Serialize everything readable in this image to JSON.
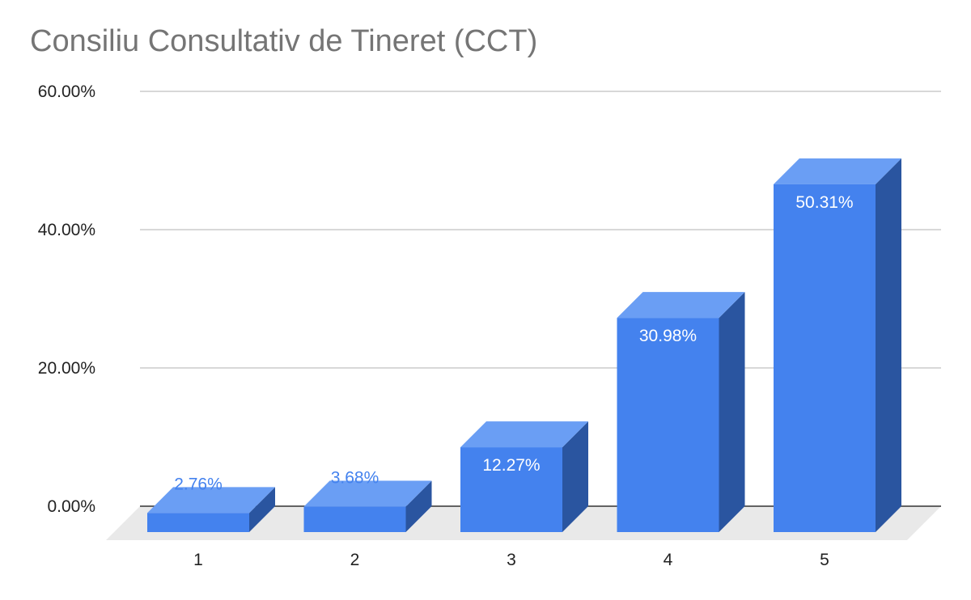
{
  "chart_data": {
    "type": "bar",
    "title": "Consiliu Consultativ de Tineret (CCT)",
    "categories": [
      "1",
      "2",
      "3",
      "4",
      "5"
    ],
    "values": [
      2.76,
      3.68,
      12.27,
      30.98,
      50.31
    ],
    "value_labels": [
      "2.76%",
      "3.68%",
      "12.27%",
      "30.98%",
      "50.31%"
    ],
    "y_ticks": [
      0,
      20,
      40,
      60
    ],
    "y_tick_labels": [
      "0.00%",
      "20.00%",
      "40.00%",
      "60.00%"
    ],
    "ylim": [
      0,
      60
    ],
    "xlabel": "",
    "ylabel": "",
    "grid": true,
    "legend": "none",
    "style": "3d",
    "colors": {
      "bar_front": "#4482ee",
      "bar_top": "#6a9ef4",
      "bar_side": "#2a55a0",
      "floor": "#e9e9e9",
      "grid": "#cccccc",
      "baseline": "#333333",
      "label_inside": "#ffffff",
      "label_outside": "#4482ee"
    }
  }
}
